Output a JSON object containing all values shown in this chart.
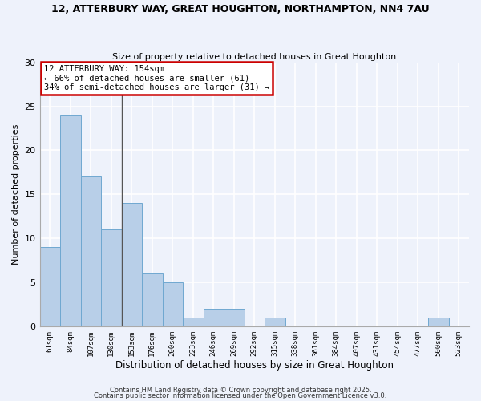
{
  "title_line1": "12, ATTERBURY WAY, GREAT HOUGHTON, NORTHAMPTON, NN4 7AU",
  "title_line2": "Size of property relative to detached houses in Great Houghton",
  "xlabel": "Distribution of detached houses by size in Great Houghton",
  "ylabel": "Number of detached properties",
  "bar_values": [
    9,
    24,
    17,
    11,
    14,
    6,
    5,
    1,
    2,
    2,
    0,
    1,
    0,
    0,
    0,
    0,
    0,
    0,
    0,
    1,
    0
  ],
  "bin_labels": [
    "61sqm",
    "84sqm",
    "107sqm",
    "130sqm",
    "153sqm",
    "176sqm",
    "200sqm",
    "223sqm",
    "246sqm",
    "269sqm",
    "292sqm",
    "315sqm",
    "338sqm",
    "361sqm",
    "384sqm",
    "407sqm",
    "431sqm",
    "454sqm",
    "477sqm",
    "500sqm",
    "523sqm"
  ],
  "bar_color": "#b8cfe8",
  "bar_edge_color": "#6fa8d0",
  "background_color": "#eef2fb",
  "grid_color": "#ffffff",
  "vline_color": "#555555",
  "annotation_text": "12 ATTERBURY WAY: 154sqm\n← 66% of detached houses are smaller (61)\n34% of semi-detached houses are larger (31) →",
  "annotation_box_color": "#ffffff",
  "annotation_box_edge": "#cc0000",
  "ylim": [
    0,
    30
  ],
  "yticks": [
    0,
    5,
    10,
    15,
    20,
    25,
    30
  ],
  "footnote1": "Contains HM Land Registry data © Crown copyright and database right 2025.",
  "footnote2": "Contains public sector information licensed under the Open Government Licence v3.0."
}
